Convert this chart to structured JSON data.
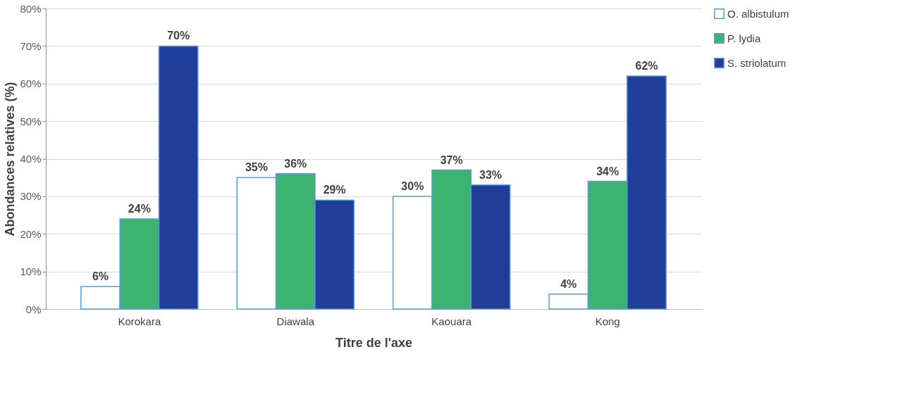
{
  "chart_data": {
    "type": "bar",
    "xlabel": "Titre de l'axe",
    "ylabel": "Abondances relatives (%)",
    "categories": [
      "Korokara",
      "Diawala",
      "Kaouara",
      "Kong"
    ],
    "series": [
      {
        "name": "O. albistulum",
        "color": "#ffffff",
        "values": [
          6,
          35,
          30,
          4
        ],
        "value_labels": [
          "6%",
          "35%",
          "30%",
          "4%"
        ]
      },
      {
        "name": "P. lydia",
        "color": "#3cb371",
        "values": [
          24,
          36,
          37,
          34
        ],
        "value_labels": [
          "24%",
          "36%",
          "37%",
          "34%"
        ]
      },
      {
        "name": "S. striolatum",
        "color": "#1f3d99",
        "values": [
          70,
          29,
          33,
          62
        ],
        "value_labels": [
          "70%",
          "29%",
          "33%",
          "62%"
        ]
      }
    ],
    "ylim": [
      0,
      80
    ],
    "yticks": [
      {
        "value": 0,
        "label": "0%"
      },
      {
        "value": 10,
        "label": "10%"
      },
      {
        "value": 20,
        "label": "20%"
      },
      {
        "value": 30,
        "label": "30%"
      },
      {
        "value": 40,
        "label": "40%"
      },
      {
        "value": 50,
        "label": "50%"
      },
      {
        "value": 60,
        "label": "60%"
      },
      {
        "value": 70,
        "label": "70%"
      },
      {
        "value": 80,
        "label": "80%"
      }
    ],
    "grid": "y",
    "legend": "right"
  }
}
